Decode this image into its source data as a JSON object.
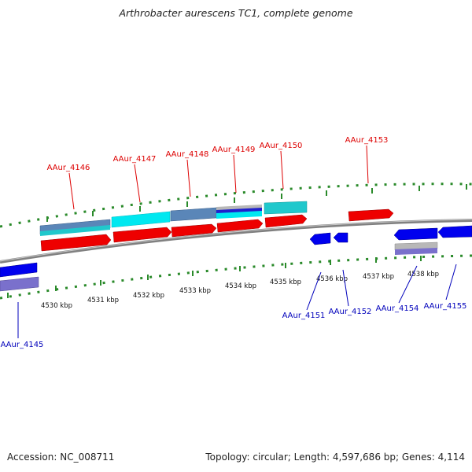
{
  "title": "Arthrobacter aurescens TC1, complete genome",
  "footer": {
    "accession": "Accession: NC_008711",
    "topology": "Topology: circular; Length: 4,597,686 bp; Genes: 4,114"
  },
  "colors": {
    "forward_label": "#dd0000",
    "reverse_label": "#0000bb",
    "cds_forward": "#ee0000",
    "cds_reverse": "#0000ee",
    "backbone": "#808080",
    "tick": "#2a8a2a",
    "steelblue_feature": "#5a86b8",
    "cyan_feature": "#00e8f0",
    "teal_feature": "#20c8cc",
    "lavender_feature": "#7a70cc",
    "grey_feature": "#b8b8b8"
  },
  "scale_labels": [
    "4530 kbp",
    "4531 kbp",
    "4532 kbp",
    "4533 kbp",
    "4534 kbp",
    "4535 kbp",
    "4536 kbp",
    "4537 kbp",
    "4538 kbp"
  ],
  "genes_forward": [
    "AAur_4146",
    "AAur_4147",
    "AAur_4148",
    "AAur_4149",
    "AAur_4150",
    "AAur_4153"
  ],
  "genes_reverse": [
    "AAur_4145",
    "AAur_4151",
    "AAur_4152",
    "AAur_4154",
    "AAur_4155"
  ]
}
